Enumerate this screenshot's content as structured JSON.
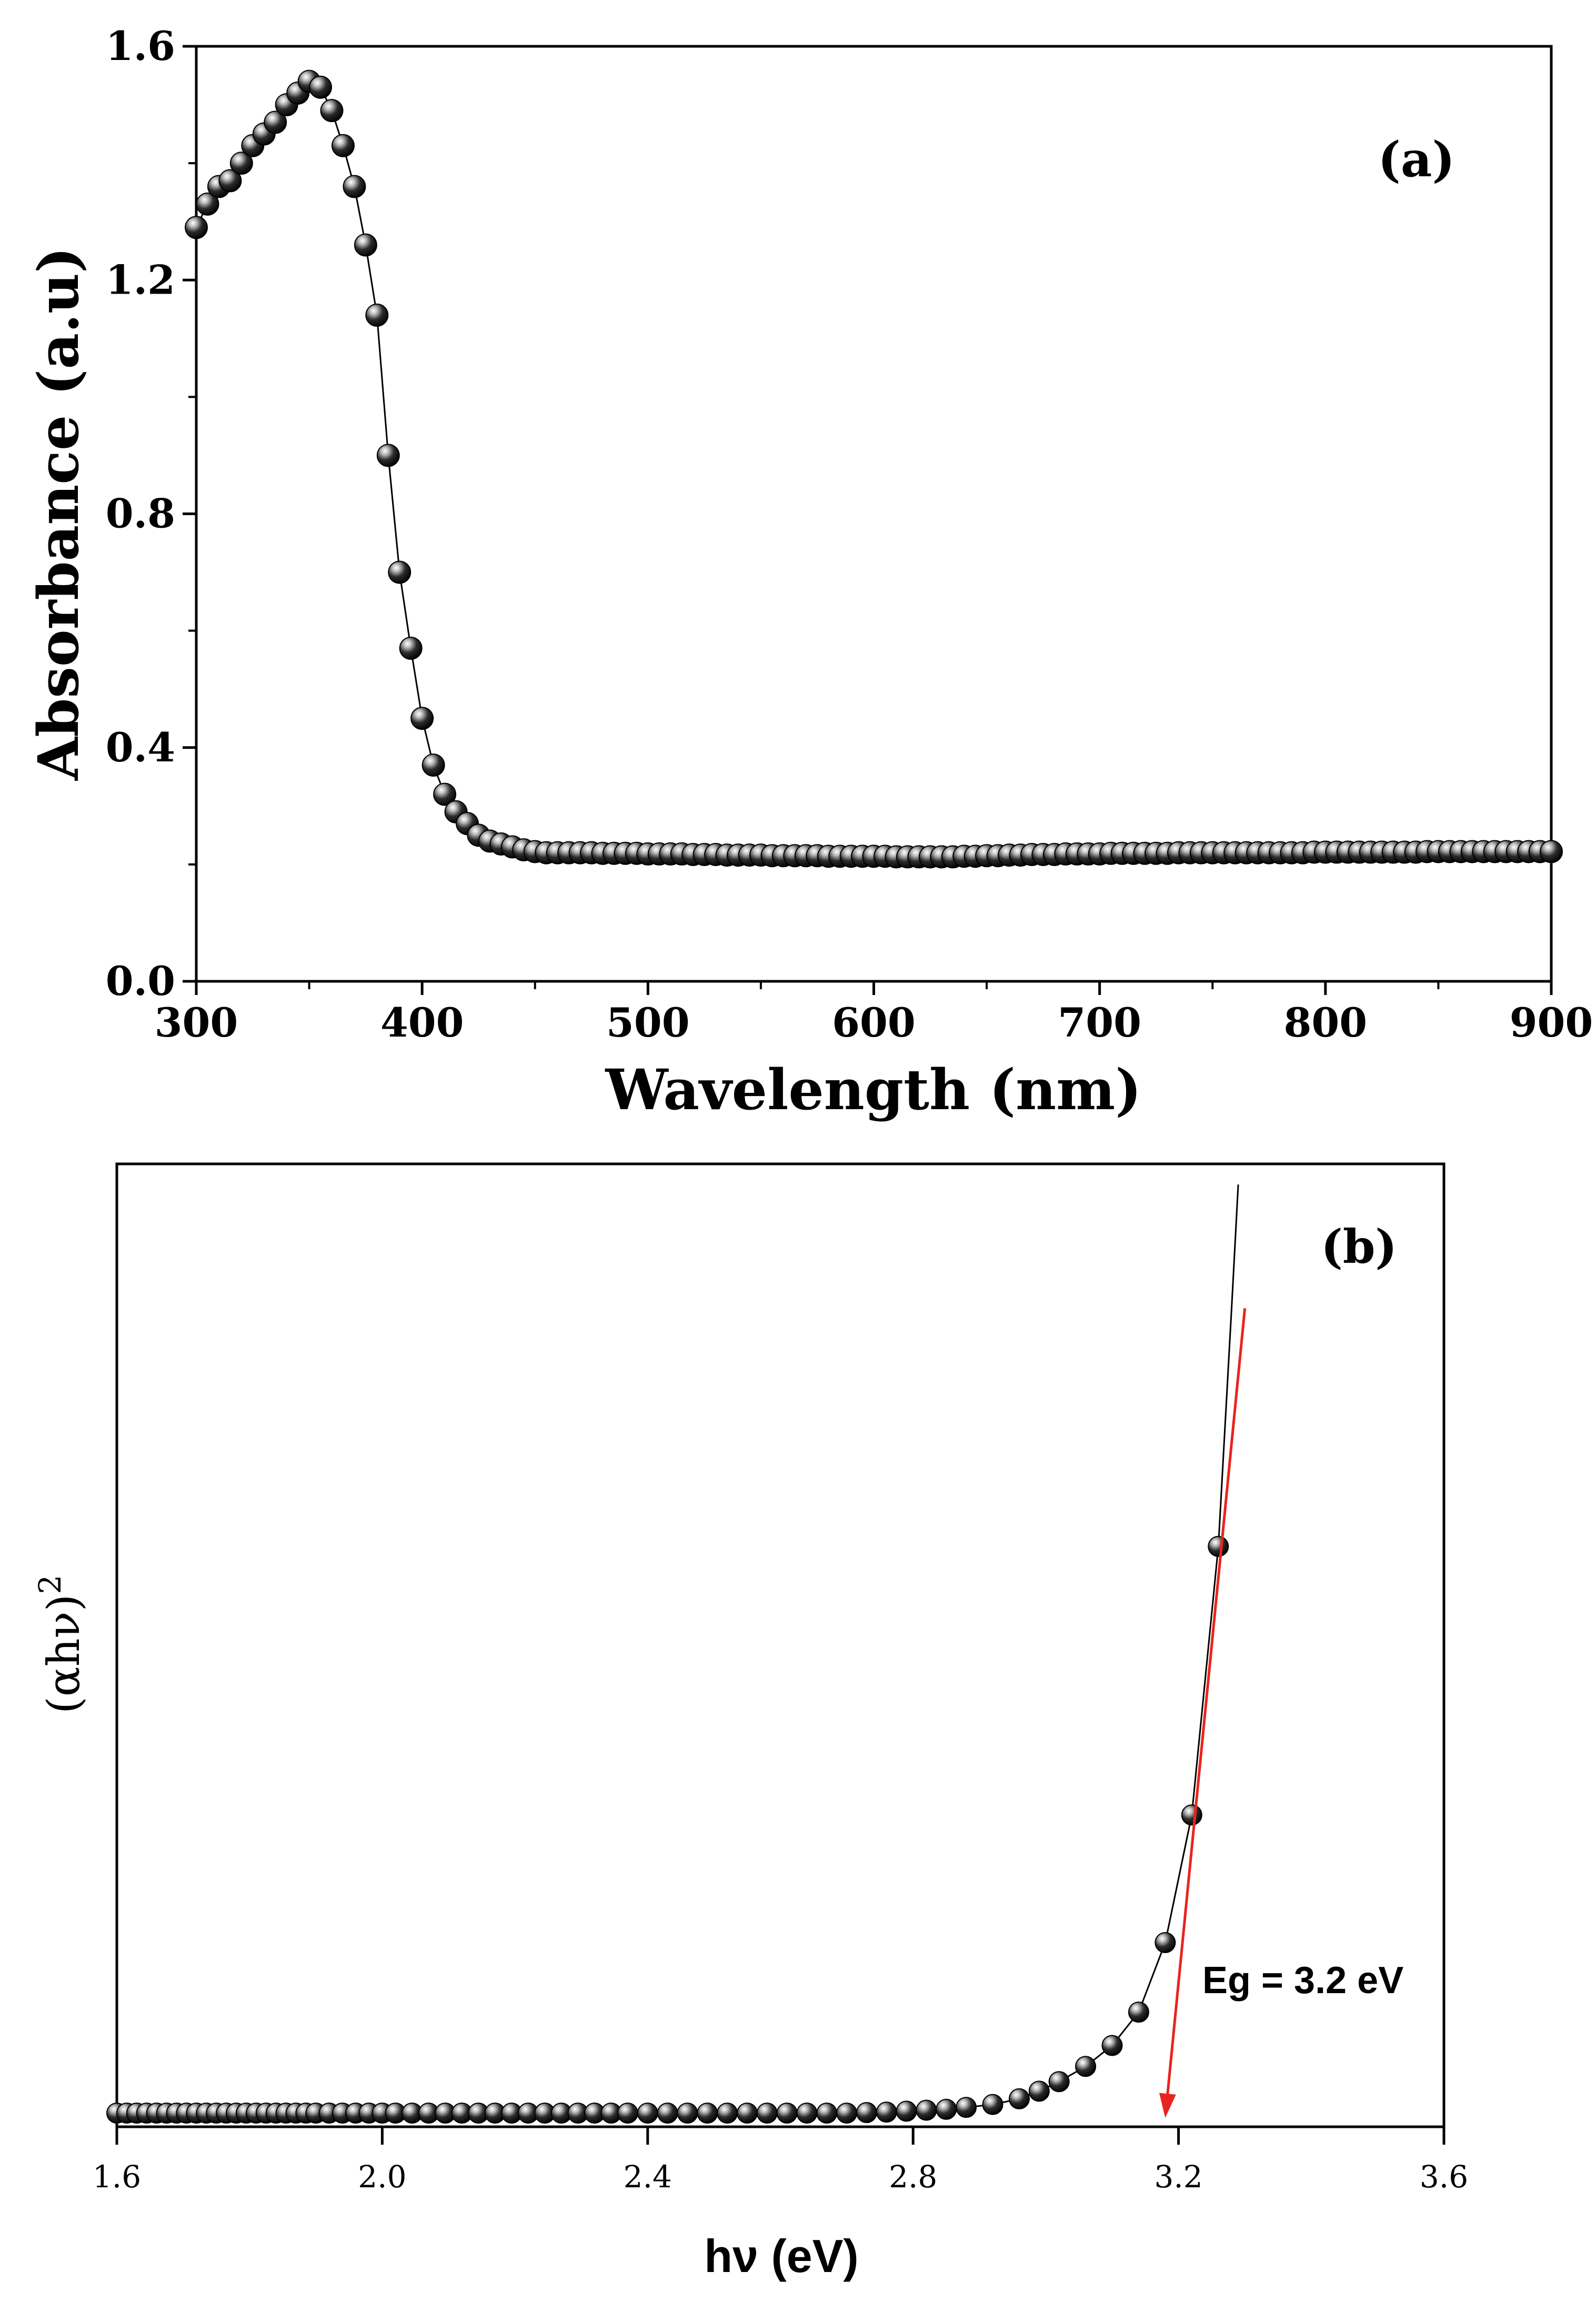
{
  "colors": {
    "axis": "#000000",
    "marker": "#000000",
    "fitLine": "#e8241f",
    "background": "#ffffff"
  },
  "chart_data": [
    {
      "type": "scatter",
      "panel_label": "(a)",
      "xlabel": "Wavelength (nm)",
      "ylabel": "Absorbance (a.u)",
      "xlim": [
        300,
        900
      ],
      "ylim": [
        0.0,
        1.6
      ],
      "xticks": [
        "300",
        "400",
        "500",
        "600",
        "700",
        "800",
        "900"
      ],
      "yticks": [
        "0.0",
        "0.4",
        "0.8",
        "1.2",
        "1.6"
      ],
      "series": [
        {
          "name": "Absorbance",
          "x": [
            300,
            305,
            310,
            315,
            320,
            325,
            330,
            335,
            340,
            345,
            350,
            355,
            360,
            365,
            370,
            375,
            380,
            385,
            390,
            395,
            400,
            405,
            410,
            415,
            420,
            425,
            430,
            435,
            440,
            445,
            450,
            455,
            460,
            465,
            470,
            475,
            480,
            485,
            490,
            495,
            500,
            505,
            510,
            515,
            520,
            525,
            530,
            535,
            540,
            545,
            550,
            555,
            560,
            565,
            570,
            575,
            580,
            585,
            590,
            595,
            600,
            605,
            610,
            615,
            620,
            625,
            630,
            635,
            640,
            645,
            650,
            655,
            660,
            665,
            670,
            675,
            680,
            685,
            690,
            695,
            700,
            705,
            710,
            715,
            720,
            725,
            730,
            735,
            740,
            745,
            750,
            755,
            760,
            765,
            770,
            775,
            780,
            785,
            790,
            795,
            800,
            805,
            810,
            815,
            820,
            825,
            830,
            835,
            840,
            845,
            850,
            855,
            860,
            865,
            870,
            875,
            880,
            885,
            890,
            895,
            900
          ],
          "values": [
            1.29,
            1.33,
            1.36,
            1.37,
            1.4,
            1.43,
            1.45,
            1.47,
            1.5,
            1.52,
            1.54,
            1.53,
            1.49,
            1.43,
            1.36,
            1.26,
            1.14,
            0.9,
            0.7,
            0.57,
            0.45,
            0.37,
            0.32,
            0.29,
            0.27,
            0.25,
            0.24,
            0.235,
            0.23,
            0.225,
            0.222,
            0.22,
            0.22,
            0.22,
            0.22,
            0.22,
            0.219,
            0.219,
            0.219,
            0.219,
            0.218,
            0.218,
            0.218,
            0.218,
            0.217,
            0.217,
            0.217,
            0.216,
            0.216,
            0.216,
            0.216,
            0.215,
            0.215,
            0.215,
            0.215,
            0.215,
            0.214,
            0.214,
            0.214,
            0.214,
            0.214,
            0.214,
            0.213,
            0.213,
            0.213,
            0.213,
            0.213,
            0.213,
            0.214,
            0.214,
            0.215,
            0.215,
            0.216,
            0.216,
            0.217,
            0.217,
            0.217,
            0.218,
            0.218,
            0.218,
            0.218,
            0.219,
            0.219,
            0.219,
            0.219,
            0.219,
            0.219,
            0.22,
            0.22,
            0.22,
            0.22,
            0.22,
            0.22,
            0.22,
            0.22,
            0.22,
            0.22,
            0.22,
            0.22,
            0.221,
            0.221,
            0.221,
            0.221,
            0.221,
            0.221,
            0.221,
            0.221,
            0.221,
            0.221,
            0.222,
            0.222,
            0.222,
            0.222,
            0.222,
            0.222,
            0.222,
            0.222,
            0.222,
            0.222,
            0.222,
            0.222
          ]
        }
      ]
    },
    {
      "type": "scatter",
      "panel_label": "(b)",
      "xlabel": "hν (eV)",
      "ylabel": "(αhν)",
      "ylabel_superscript": "2",
      "xlim": [
        1.6,
        3.6
      ],
      "ylim": [
        0,
        100
      ],
      "xticks": [
        "1.6",
        "2.0",
        "2.4",
        "2.8",
        "3.2",
        "3.6"
      ],
      "annotation": "Eg = 3.2 eV",
      "band_gap_eV": 3.2,
      "series": [
        {
          "name": "(αhν)^2",
          "x": [
            1.6,
            1.615,
            1.63,
            1.645,
            1.66,
            1.675,
            1.69,
            1.705,
            1.72,
            1.735,
            1.75,
            1.765,
            1.78,
            1.795,
            1.81,
            1.825,
            1.84,
            1.855,
            1.87,
            1.885,
            1.9,
            1.92,
            1.94,
            1.96,
            1.98,
            2.0,
            2.02,
            2.045,
            2.07,
            2.095,
            2.12,
            2.145,
            2.17,
            2.195,
            2.22,
            2.245,
            2.27,
            2.295,
            2.32,
            2.345,
            2.37,
            2.4,
            2.43,
            2.46,
            2.49,
            2.52,
            2.55,
            2.58,
            2.61,
            2.64,
            2.67,
            2.7,
            2.73,
            2.76,
            2.79,
            2.82,
            2.85,
            2.88,
            2.92,
            2.96,
            2.99,
            3.02,
            3.06,
            3.1,
            3.14,
            3.18,
            3.22,
            3.26
          ],
          "values": [
            0.5,
            0.5,
            0.5,
            0.5,
            0.5,
            0.5,
            0.5,
            0.5,
            0.5,
            0.5,
            0.5,
            0.5,
            0.5,
            0.5,
            0.5,
            0.5,
            0.5,
            0.5,
            0.5,
            0.5,
            0.5,
            0.5,
            0.5,
            0.5,
            0.5,
            0.5,
            0.5,
            0.5,
            0.5,
            0.5,
            0.5,
            0.5,
            0.5,
            0.5,
            0.5,
            0.5,
            0.5,
            0.5,
            0.5,
            0.5,
            0.5,
            0.5,
            0.5,
            0.5,
            0.5,
            0.5,
            0.5,
            0.5,
            0.5,
            0.5,
            0.5,
            0.5,
            0.55,
            0.6,
            0.7,
            0.8,
            0.9,
            1.1,
            1.4,
            2.0,
            2.8,
            3.8,
            5.4,
            7.6,
            11.1,
            18.4,
            31.8,
            60.0
          ]
        }
      ],
      "curve_extension": {
        "x": [
          3.26,
          3.28,
          3.29
        ],
        "values": [
          60.0,
          85.0,
          98.0
        ]
      },
      "linear_fit": {
        "x": [
          3.18,
          3.3
        ],
        "values": [
          0,
          85
        ]
      }
    }
  ]
}
